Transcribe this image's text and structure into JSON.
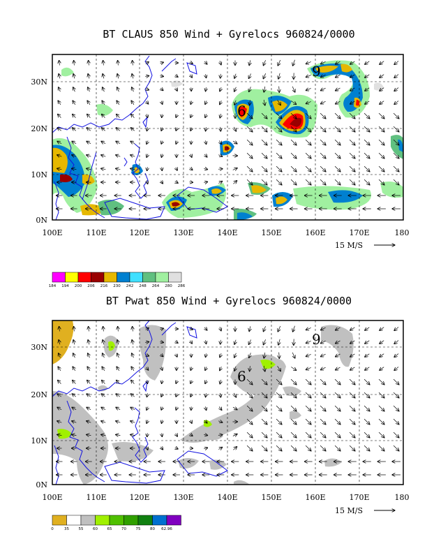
{
  "top_panel": {
    "title": "BT CLAUS 850 Wind + Gyrelocs 960824/0000",
    "x_ticks": [
      "100E",
      "110E",
      "120E",
      "130E",
      "140E",
      "150E",
      "160E",
      "170E",
      "180"
    ],
    "y_ticks": [
      "0N",
      "10N",
      "20N",
      "30N"
    ],
    "wind_scale_label": "15 M/S",
    "cyclone_symbols": [
      "9",
      "6"
    ],
    "colorbar": {
      "colors": [
        "#ff00ff",
        "#ffff00",
        "#ff0000",
        "#990000",
        "#e6b800",
        "#0080d0",
        "#40e0ff",
        "#60c080",
        "#a0f0a0",
        "#e0e0e0"
      ],
      "labels": [
        "184",
        "194",
        "200",
        "206",
        "216",
        "230",
        "242",
        "248",
        "264",
        "280",
        "286"
      ]
    }
  },
  "bottom_panel": {
    "title": "BT Pwat 850 Wind + Gyrelocs 960824/0000",
    "x_ticks": [
      "100E",
      "110E",
      "120E",
      "130E",
      "140E",
      "150E",
      "160E",
      "170E",
      "180"
    ],
    "y_ticks": [
      "0N",
      "10N",
      "20N",
      "30N"
    ],
    "wind_scale_label": "15 M/S",
    "cyclone_symbols": [
      "9",
      "6"
    ],
    "colorbar": {
      "colors": [
        "#e0b020",
        "#ffffff",
        "#c0c0c0",
        "#a0f000",
        "#50c000",
        "#30a000",
        "#108010",
        "#0070d0",
        "#8000c0"
      ],
      "labels": [
        "0",
        "35",
        "55",
        "60",
        "65",
        "70",
        "75",
        "80",
        "62.96"
      ]
    }
  }
}
